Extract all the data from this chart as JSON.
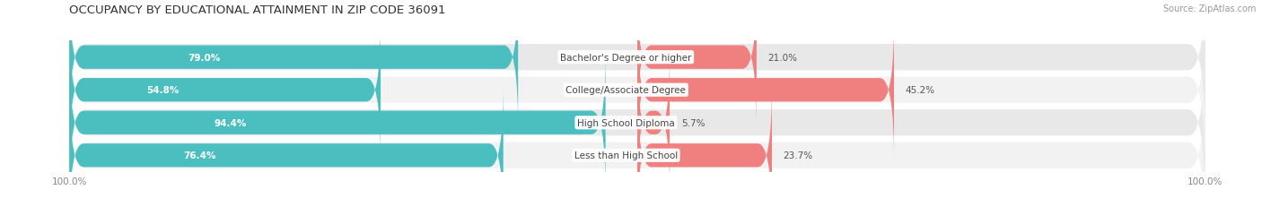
{
  "title": "OCCUPANCY BY EDUCATIONAL ATTAINMENT IN ZIP CODE 36091",
  "source": "Source: ZipAtlas.com",
  "categories": [
    "Less than High School",
    "High School Diploma",
    "College/Associate Degree",
    "Bachelor's Degree or higher"
  ],
  "owner_values": [
    76.4,
    94.4,
    54.8,
    79.0
  ],
  "renter_values": [
    23.7,
    5.7,
    45.2,
    21.0
  ],
  "owner_color": "#4BBFBF",
  "renter_color": "#F08080",
  "row_bg_color_light": "#F2F2F2",
  "row_bg_color_dark": "#E8E8E8",
  "title_fontsize": 9.5,
  "source_fontsize": 7,
  "label_fontsize": 7.5,
  "value_fontsize": 7.5,
  "tick_fontsize": 7.5,
  "legend_fontsize": 8,
  "axis_label_left": "100.0%",
  "axis_label_right": "100.0%",
  "background_color": "#FFFFFF",
  "fig_width": 14.06,
  "fig_height": 2.32
}
